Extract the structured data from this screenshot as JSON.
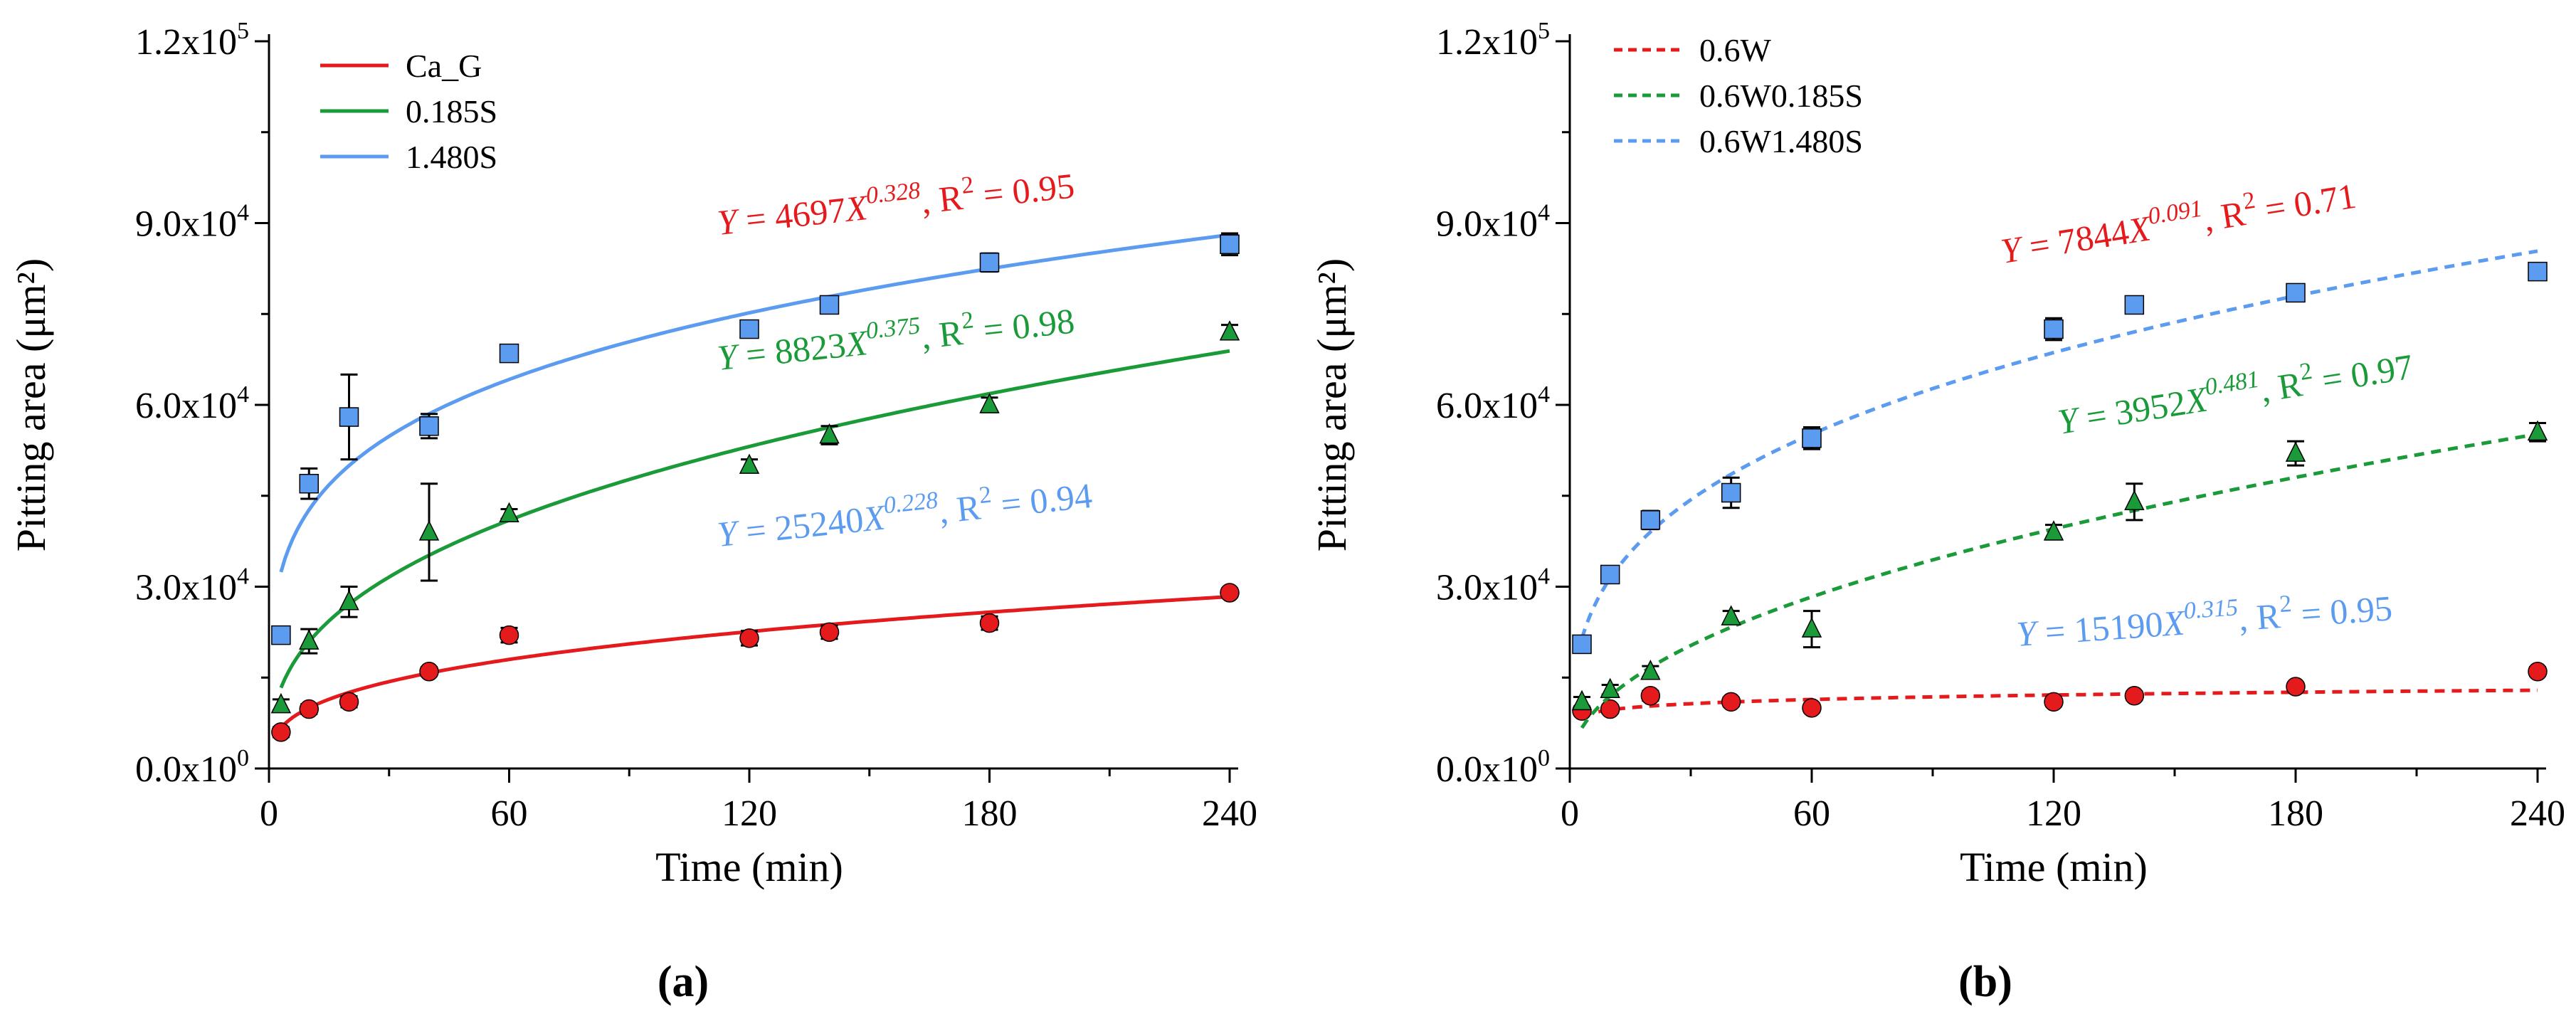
{
  "figure": {
    "panel_a_label": "(a)",
    "panel_b_label": "(b)"
  },
  "chart_data": [
    {
      "panel": "(a)",
      "type": "scatter",
      "xlabel": "Time (min)",
      "ylabel": "Pitting area (μm²)",
      "xlim": [
        0,
        240
      ],
      "ylim": [
        0,
        120000
      ],
      "xticks": [
        0,
        60,
        120,
        180,
        240
      ],
      "yticks": [
        {
          "mantissa": "0.0x10",
          "exp": "0",
          "value": 0
        },
        {
          "mantissa": "3.0x10",
          "exp": "4",
          "value": 30000
        },
        {
          "mantissa": "6.0x10",
          "exp": "4",
          "value": 60000
        },
        {
          "mantissa": "9.0x10",
          "exp": "4",
          "value": 90000
        },
        {
          "mantissa": "1.2x10",
          "exp": "5",
          "value": 120000
        }
      ],
      "legend_position": "top-left",
      "series": [
        {
          "name": "Ca_G",
          "color": "#e41a1c",
          "marker": "circle",
          "line": "solid",
          "fit": {
            "a": 4697,
            "b": 0.328,
            "r2": "0.95",
            "coef": "4697",
            "exp": "0.328",
            "r2_text": "0.95"
          },
          "x": [
            3,
            10,
            20,
            40,
            60,
            120,
            140,
            180,
            240
          ],
          "y": [
            6000,
            9800,
            11000,
            16000,
            22000,
            21500,
            22500,
            24000,
            29000
          ],
          "err": [
            800,
            800,
            900,
            700,
            1200,
            1200,
            1100,
            1100,
            700
          ]
        },
        {
          "name": "0.185S",
          "color": "#1a9a38",
          "marker": "triangle",
          "line": "solid",
          "fit": {
            "a": 8823,
            "b": 0.375,
            "r2": "0.98",
            "coef": "8823",
            "exp": "0.375",
            "r2_text": "0.98"
          },
          "x": [
            3,
            10,
            20,
            40,
            60,
            120,
            140,
            180,
            240
          ],
          "y": [
            10500,
            21000,
            27500,
            39000,
            42000,
            50000,
            55000,
            60000,
            72000
          ],
          "err": [
            900,
            2000,
            2500,
            8000,
            800,
            1000,
            1500,
            1200,
            1200
          ]
        },
        {
          "name": "1.480S",
          "color": "#5b9bf0",
          "marker": "square",
          "line": "solid",
          "fit": {
            "a": 25240,
            "b": 0.228,
            "r2": "0.94",
            "coef": "25240",
            "exp": "0.228",
            "r2_text": "0.94"
          },
          "x": [
            3,
            10,
            20,
            40,
            60,
            120,
            140,
            180,
            240
          ],
          "y": [
            22000,
            47000,
            58000,
            56500,
            68500,
            72500,
            76500,
            83500,
            86500
          ],
          "err": [
            1200,
            2500,
            7000,
            2000,
            900,
            1200,
            1200,
            1500,
            1800
          ]
        }
      ]
    },
    {
      "panel": "(b)",
      "type": "scatter",
      "xlabel": "Time (min)",
      "ylabel": "Pitting area (μm²)",
      "xlim": [
        0,
        240
      ],
      "ylim": [
        0,
        120000
      ],
      "xticks": [
        0,
        60,
        120,
        180,
        240
      ],
      "yticks": [
        {
          "mantissa": "0.0x10",
          "exp": "0",
          "value": 0
        },
        {
          "mantissa": "3.0x10",
          "exp": "4",
          "value": 30000
        },
        {
          "mantissa": "6.0x10",
          "exp": "4",
          "value": 60000
        },
        {
          "mantissa": "9.0x10",
          "exp": "4",
          "value": 90000
        },
        {
          "mantissa": "1.2x10",
          "exp": "5",
          "value": 120000
        }
      ],
      "legend_position": "top-left",
      "series": [
        {
          "name": "0.6W",
          "color": "#e41a1c",
          "marker": "circle",
          "line": "dashed",
          "fit": {
            "a": 7844,
            "b": 0.091,
            "r2": "0.71",
            "coef": "7844",
            "exp": "0.091",
            "r2_text": "0.71"
          },
          "x": [
            3,
            10,
            20,
            40,
            60,
            120,
            140,
            180,
            240
          ],
          "y": [
            9500,
            9800,
            12000,
            11000,
            10000,
            11000,
            12000,
            13500,
            16000
          ],
          "err": [
            700,
            700,
            800,
            700,
            700,
            700,
            700,
            600,
            700
          ]
        },
        {
          "name": "0.6W0.185S",
          "color": "#1a9a38",
          "marker": "triangle",
          "line": "dashed",
          "fit": {
            "a": 3952,
            "b": 0.481,
            "r2": "0.97",
            "coef": "3952",
            "exp": "0.481",
            "r2_text": "0.97"
          },
          "x": [
            3,
            10,
            20,
            40,
            60,
            120,
            140,
            180,
            240
          ],
          "y": [
            11000,
            13000,
            16000,
            25000,
            23000,
            39000,
            44000,
            52000,
            55500
          ],
          "err": [
            800,
            800,
            900,
            1000,
            3000,
            1200,
            3000,
            2000,
            1500
          ]
        },
        {
          "name": "0.6W1.480S",
          "color": "#5b9bf0",
          "marker": "square",
          "line": "dashed",
          "fit": {
            "a": 15190,
            "b": 0.315,
            "r2": "0.95",
            "coef": "15190",
            "exp": "0.315",
            "r2_text": "0.95"
          },
          "x": [
            3,
            10,
            20,
            40,
            60,
            120,
            140,
            180,
            240
          ],
          "y": [
            20500,
            32000,
            41000,
            45500,
            54500,
            72500,
            76500,
            78500,
            82000
          ],
          "err": [
            1200,
            1200,
            1500,
            2500,
            1800,
            1800,
            1200,
            1200,
            1000
          ]
        }
      ]
    }
  ]
}
